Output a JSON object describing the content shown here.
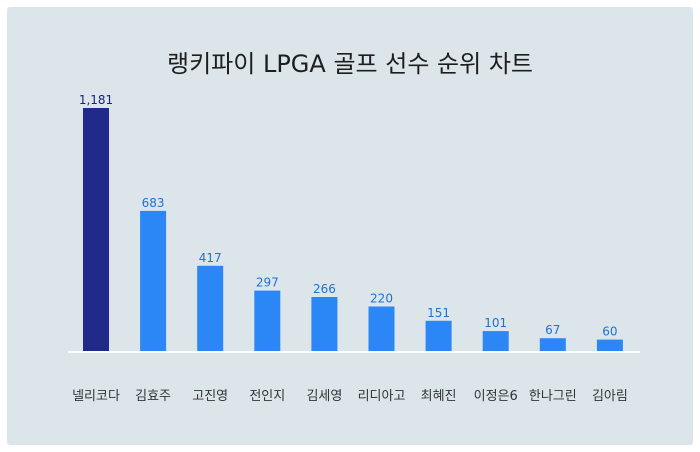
{
  "chart_data": {
    "type": "bar",
    "title": "랭키파이 LPGA 골프 선수 순위 차트",
    "categories": [
      "넬리코다",
      "김효주",
      "고진영",
      "전인지",
      "김세영",
      "리디아고",
      "최혜진",
      "이정은6",
      "한나그린",
      "김아림"
    ],
    "values": [
      1181,
      683,
      417,
      297,
      266,
      220,
      151,
      101,
      67,
      60
    ],
    "value_labels": [
      "1,181",
      "683",
      "417",
      "297",
      "266",
      "220",
      "151",
      "101",
      "67",
      "60"
    ],
    "xlabel": "",
    "ylabel": "",
    "ylim": [
      0,
      1181
    ],
    "grid": false,
    "legend": "none",
    "colors": {
      "highlight_bar": "#1f2a8a",
      "bar": "#2a87f5",
      "highlight_label": "#1a237e",
      "label": "#1f72d4",
      "baseline": "#ffffff",
      "background": "#dce5e9"
    }
  }
}
